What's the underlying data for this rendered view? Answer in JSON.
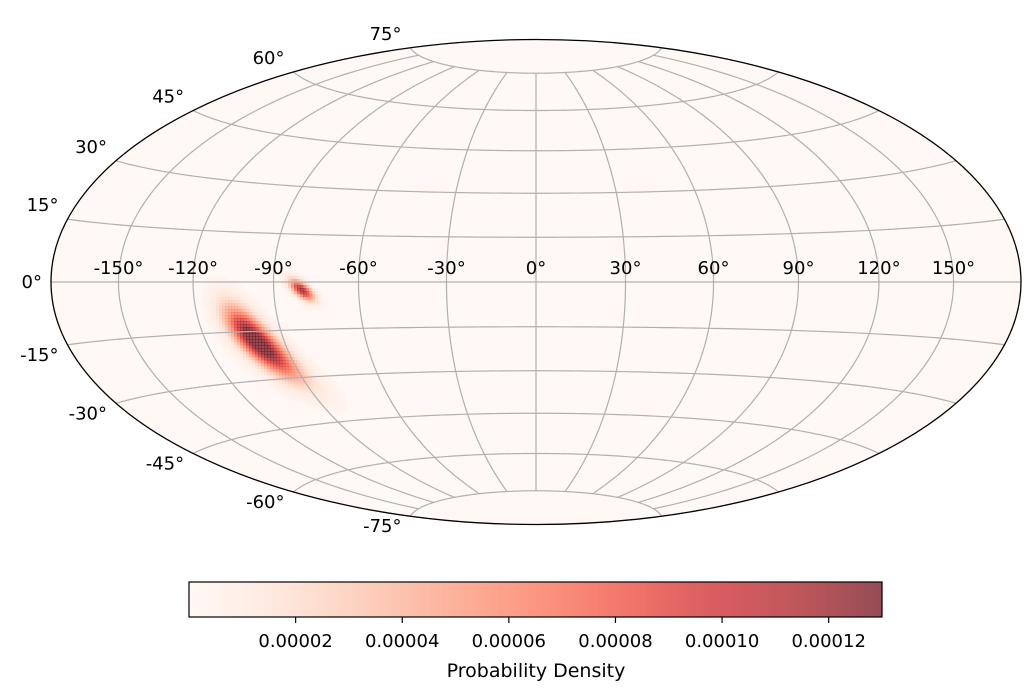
{
  "chart_data": {
    "type": "heatmap",
    "projection": "hammer",
    "title": "",
    "xlabel": "",
    "ylabel": "",
    "grid": true,
    "longitude_range": [
      -180,
      180
    ],
    "latitude_range": [
      -90,
      90
    ],
    "longitude_ticks": [
      "-150°",
      "-120°",
      "-90°",
      "-60°",
      "-30°",
      "0°",
      "30°",
      "60°",
      "90°",
      "120°",
      "150°"
    ],
    "latitude_ticks": [
      "75°",
      "60°",
      "45°",
      "30°",
      "15°",
      "0°",
      "-15°",
      "-30°",
      "-45°",
      "-60°",
      "-75°"
    ],
    "colormap": "Reds",
    "colormap_stops": [
      "#fff5f0",
      "#fee0d2",
      "#fcbba1",
      "#fc9272",
      "#fb6a4a",
      "#ef3b2c",
      "#cb181d",
      "#a50f15",
      "#67000d"
    ],
    "alpha": 0.7,
    "colorbar": {
      "label": "Probability Density",
      "range": [
        0,
        0.00013
      ],
      "ticks": [
        "0.00002",
        "0.00004",
        "0.00006",
        "0.00008",
        "0.00010",
        "0.00012"
      ],
      "tick_values": [
        2e-05,
        4e-05,
        6e-05,
        8e-05,
        0.0001,
        0.00012
      ],
      "orientation": "horizontal",
      "placement": "bottom"
    },
    "peaks": [
      {
        "lon": -101,
        "lat": -17,
        "value": 0.000129,
        "sigma_major": 7.5,
        "sigma_minor": 3.6,
        "angle": 52
      },
      {
        "lon": -97,
        "lat": -24,
        "value": 4.5e-05,
        "sigma_major": 8,
        "sigma_minor": 4,
        "angle": 52
      },
      {
        "lon": -80,
        "lat": -2.5,
        "value": 0.000122,
        "sigma_major": 3.2,
        "sigma_minor": 1.4,
        "angle": 35
      }
    ]
  }
}
